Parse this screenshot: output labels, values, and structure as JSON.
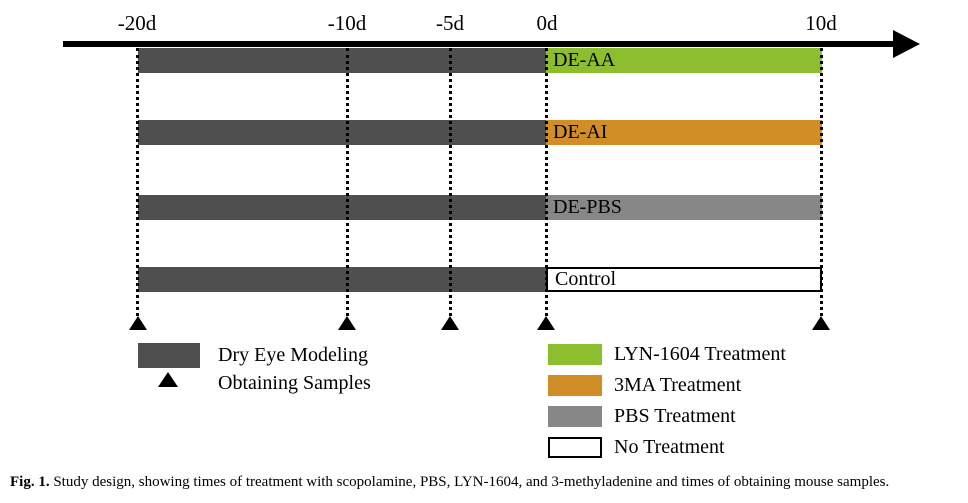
{
  "colors": {
    "modeling_bar": "#4f4f4f",
    "lyn1604": "#8cbe2f",
    "ma3": "#d18d26",
    "pbs": "#878787",
    "no_treatment": "#ffffff",
    "axis": "#000000"
  },
  "timeline": {
    "unit": "days",
    "ticks": [
      {
        "label": "-20d",
        "day": -20
      },
      {
        "label": "-10d",
        "day": -10
      },
      {
        "label": "-5d",
        "day": -5
      },
      {
        "label": "0d",
        "day": 0
      },
      {
        "label": "10d",
        "day": 10
      }
    ],
    "sample_days": [
      -20,
      -10,
      -5,
      0,
      10
    ]
  },
  "groups": [
    {
      "label": "DE-AA",
      "modeling_span": [
        -20,
        0
      ],
      "treatment": "LYN-1604 Treatment",
      "treatment_span": [
        0,
        10
      ],
      "color": "#8cbe2f"
    },
    {
      "label": "DE-AI",
      "modeling_span": [
        -20,
        0
      ],
      "treatment": "3MA Treatment",
      "treatment_span": [
        0,
        10
      ],
      "color": "#d18d26"
    },
    {
      "label": "DE-PBS",
      "modeling_span": [
        -20,
        0
      ],
      "treatment": "PBS Treatment",
      "treatment_span": [
        0,
        10
      ],
      "color": "#878787"
    },
    {
      "label": "Control",
      "modeling_span": [
        -20,
        0
      ],
      "treatment": "No Treatment",
      "treatment_span": [
        0,
        10
      ],
      "color": "#ffffff"
    }
  ],
  "legend_left": {
    "items": [
      {
        "symbol": "dark-rectangle",
        "label": "Dry Eye Modeling"
      },
      {
        "symbol": "triangle",
        "label": "Obtaining Samples"
      }
    ]
  },
  "legend_right": {
    "items": [
      {
        "color": "#8cbe2f",
        "label": "LYN-1604 Treatment"
      },
      {
        "color": "#d18d26",
        "label": "3MA Treatment"
      },
      {
        "color": "#878787",
        "label": "PBS Treatment"
      },
      {
        "color": "#ffffff",
        "label": "No Treatment",
        "outlined": true
      }
    ]
  },
  "caption": {
    "label": "Fig. 1.",
    "text": " Study design, showing times of treatment with scopolamine, PBS, LYN-1604, and 3-methyladenine and times of obtaining mouse samples."
  }
}
